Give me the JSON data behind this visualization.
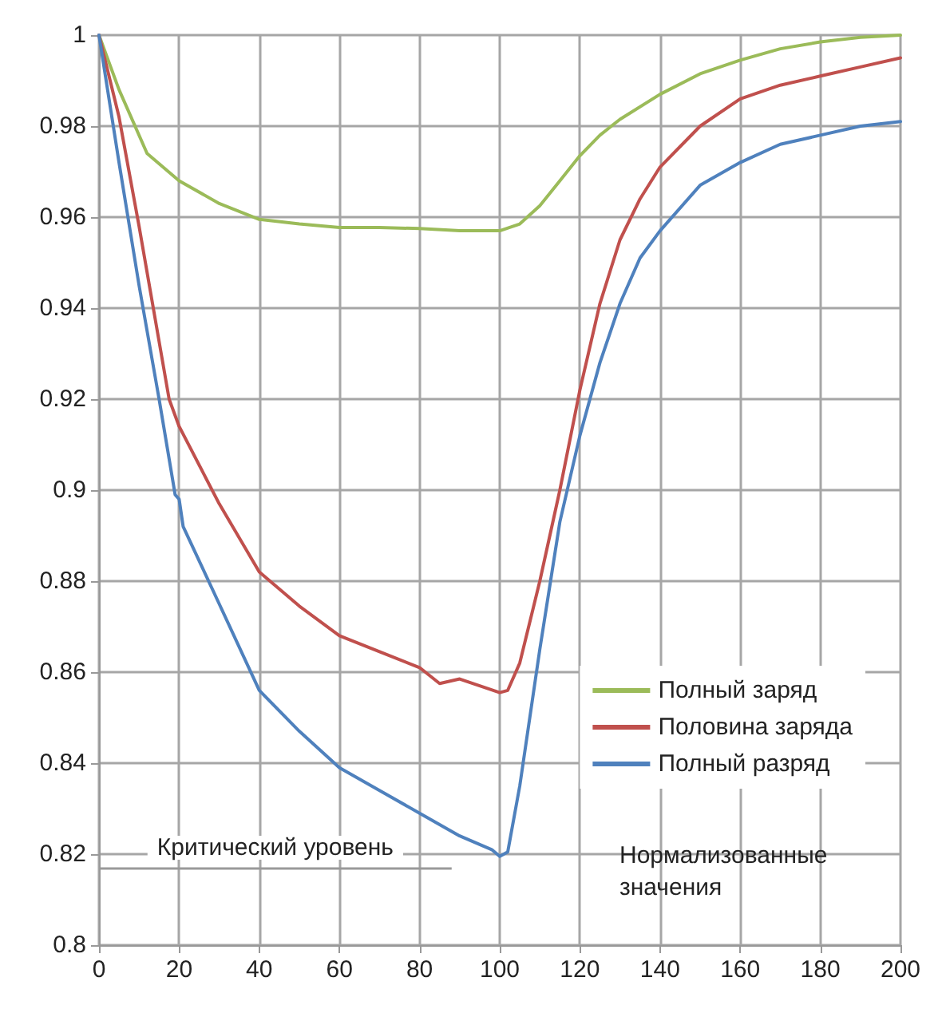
{
  "chart_data": {
    "type": "line",
    "xlim": [
      0,
      200
    ],
    "xticks": [
      0,
      20,
      40,
      60,
      80,
      100,
      120,
      140,
      160,
      180,
      200
    ],
    "ylim": [
      0.8,
      1
    ],
    "yticks": [
      0.8,
      0.82,
      0.84,
      0.86,
      0.88,
      0.9,
      0.92,
      0.94,
      0.96,
      0.98,
      1
    ],
    "grid": true,
    "legend": "bottom right",
    "marker": "none",
    "line_style": "solid",
    "series": [
      {
        "name": "Полный заряд",
        "color": "#9bbb59",
        "x": [
          0,
          5,
          12,
          20,
          30,
          40,
          50,
          60,
          70,
          80,
          90,
          100,
          105,
          110,
          115,
          120,
          125,
          130,
          140,
          150,
          160,
          170,
          180,
          190,
          200
        ],
        "values": [
          1,
          0.988,
          0.974,
          0.968,
          0.963,
          0.9595,
          0.9585,
          0.9577,
          0.9577,
          0.9575,
          0.957,
          0.957,
          0.9585,
          0.9625,
          0.968,
          0.9735,
          0.978,
          0.9815,
          0.987,
          0.9915,
          0.9945,
          0.997,
          0.9985,
          0.9995,
          1
        ]
      },
      {
        "name": "Половина заряда",
        "color": "#c0504d",
        "x": [
          0,
          5,
          10,
          17.5,
          20,
          30,
          40,
          50,
          60,
          70,
          80,
          85,
          90,
          100,
          102,
          105,
          110,
          115,
          120,
          125,
          130,
          135,
          140,
          150,
          160,
          170,
          180,
          190,
          200
        ],
        "values": [
          1,
          0.982,
          0.958,
          0.92,
          0.914,
          0.897,
          0.882,
          0.8745,
          0.868,
          0.8645,
          0.861,
          0.8575,
          0.8585,
          0.8555,
          0.856,
          0.862,
          0.88,
          0.9,
          0.922,
          0.941,
          0.955,
          0.964,
          0.971,
          0.98,
          0.986,
          0.989,
          0.991,
          0.993,
          0.995
        ]
      },
      {
        "name": "Полный разряд",
        "color": "#4f81bd",
        "x": [
          0,
          5,
          10,
          15,
          19,
          20,
          21,
          30,
          40,
          50,
          60,
          70,
          80,
          90,
          98,
          100,
          102,
          105,
          110,
          115,
          120,
          125,
          130,
          135,
          140,
          150,
          160,
          170,
          180,
          190,
          200
        ],
        "values": [
          1,
          0.972,
          0.945,
          0.92,
          0.899,
          0.898,
          0.892,
          0.875,
          0.856,
          0.847,
          0.839,
          0.834,
          0.829,
          0.824,
          0.821,
          0.8195,
          0.8205,
          0.835,
          0.865,
          0.893,
          0.912,
          0.928,
          0.941,
          0.951,
          0.957,
          0.967,
          0.972,
          0.976,
          0.978,
          0.98,
          0.981
        ]
      }
    ],
    "ref_lines": [
      {
        "axis": "y",
        "value": 0.817,
        "label": "Критический уровень",
        "color": "#999999"
      }
    ],
    "annotations": [
      "Нормализованные значения"
    ]
  }
}
